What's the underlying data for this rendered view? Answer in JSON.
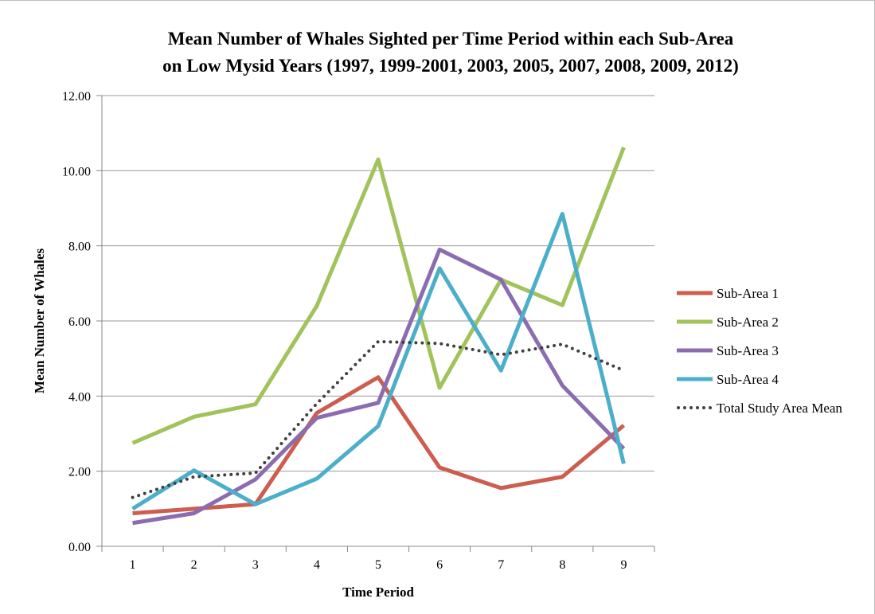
{
  "chart_data": {
    "type": "line",
    "title_lines": [
      "Mean Number of Whales Sighted per Time Period within each Sub-Area",
      "on Low Mysid Years (1997, 1999-2001, 2003, 2005, 2007, 2008, 2009, 2012)"
    ],
    "xlabel": "Time Period",
    "ylabel": "Mean Number of Whales",
    "x": [
      1,
      2,
      3,
      4,
      5,
      6,
      7,
      8,
      9
    ],
    "x_tick_labels": [
      "1",
      "2",
      "3",
      "4",
      "5",
      "6",
      "7",
      "8",
      "9"
    ],
    "ylim": [
      0,
      12
    ],
    "y_ticks": [
      0,
      2,
      4,
      6,
      8,
      10,
      12
    ],
    "y_tick_labels": [
      "0.00",
      "2.00",
      "4.00",
      "6.00",
      "8.00",
      "10.00",
      "12.00"
    ],
    "grid": "horizontal",
    "legend_position": "right",
    "series": [
      {
        "name": "Sub-Area 1",
        "color": "#cc5d4f",
        "style": "solid",
        "values": [
          0.88,
          1.0,
          1.12,
          3.55,
          4.5,
          2.1,
          1.55,
          1.85,
          3.22
        ]
      },
      {
        "name": "Sub-Area 2",
        "color": "#a2c35b",
        "style": "solid",
        "values": [
          2.75,
          3.45,
          3.78,
          6.4,
          10.3,
          4.22,
          7.1,
          6.42,
          10.62
        ]
      },
      {
        "name": "Sub-Area 3",
        "color": "#8c6cb0",
        "style": "solid",
        "values": [
          0.62,
          0.88,
          1.78,
          3.42,
          3.82,
          7.9,
          7.1,
          4.28,
          2.6
        ]
      },
      {
        "name": "Sub-Area 4",
        "color": "#4bafca",
        "style": "solid",
        "values": [
          1.0,
          2.02,
          1.12,
          1.8,
          3.2,
          7.4,
          4.68,
          8.85,
          2.2
        ]
      },
      {
        "name": "Total Study Area Mean",
        "color": "#404040",
        "style": "dotted",
        "values": [
          1.3,
          1.85,
          1.95,
          3.8,
          5.45,
          5.4,
          5.1,
          5.38,
          4.68
        ]
      }
    ]
  }
}
